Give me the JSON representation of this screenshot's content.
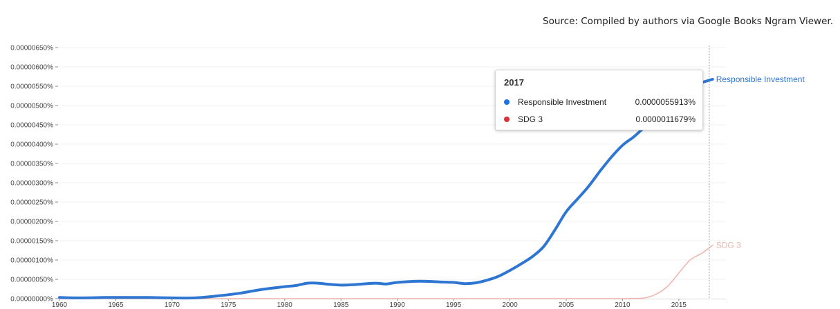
{
  "source_note": "Source: Compiled by authors via Google Books Ngram Viewer.",
  "chart_data": {
    "type": "line",
    "x_ticks": [
      "1960",
      "1965",
      "1970",
      "1975",
      "1980",
      "1985",
      "1990",
      "1995",
      "2000",
      "2005",
      "2010",
      "2015"
    ],
    "y_ticks": [
      "0.00000000%",
      "0.00000050%",
      "0.00000100%",
      "0.00000150%",
      "0.00000200%",
      "0.00000250%",
      "0.00000300%",
      "0.00000350%",
      "0.00000400%",
      "0.00000450%",
      "0.00000500%",
      "0.00000550%",
      "0.00000600%",
      "0.00000650%"
    ],
    "xlim": [
      1960,
      2019
    ],
    "ylim": [
      0,
      6.5e-06
    ],
    "grid": true,
    "series": [
      {
        "name": "Responsible Investment",
        "color": "#2e76d2",
        "x": [
          1960,
          1962,
          1964,
          1966,
          1968,
          1970,
          1972,
          1974,
          1976,
          1978,
          1980,
          1981,
          1982,
          1983,
          1984,
          1985,
          1986,
          1988,
          1989,
          1990,
          1992,
          1994,
          1995,
          1996,
          1997,
          1998,
          1999,
          2000,
          2001,
          2002,
          2003,
          2004,
          2005,
          2006,
          2007,
          2008,
          2009,
          2010,
          2011,
          2012,
          2013,
          2014,
          2015,
          2016,
          2017,
          2018
        ],
        "y": [
          3e-08,
          2e-08,
          3e-08,
          3e-08,
          3e-08,
          2e-08,
          2e-08,
          7e-08,
          1.4e-07,
          2.4e-07,
          3.1e-07,
          3.4e-07,
          4e-07,
          4e-07,
          3.7e-07,
          3.5e-07,
          3.6e-07,
          4e-07,
          3.8e-07,
          4.2e-07,
          4.5e-07,
          4.3e-07,
          4.2e-07,
          3.9e-07,
          4.1e-07,
          4.8e-07,
          5.8e-07,
          7.3e-07,
          9e-07,
          1.09e-06,
          1.35e-06,
          1.78e-06,
          2.25e-06,
          2.58e-06,
          2.91e-06,
          3.3e-06,
          3.66e-06,
          3.97e-06,
          4.19e-06,
          4.45e-06,
          4.68e-06,
          4.94e-06,
          5.22e-06,
          5.48e-06,
          5.5913e-06,
          5.68e-06
        ]
      },
      {
        "name": "SDG 3",
        "color": "#f0b6ad",
        "x": [
          1960,
          1970,
          1980,
          1990,
          2000,
          2008,
          2010,
          2011,
          2012,
          2013,
          2014,
          2015,
          2016,
          2017,
          2018
        ],
        "y": [
          0,
          0,
          0,
          0,
          0,
          0,
          0,
          5e-09,
          2e-08,
          1.2e-07,
          3.2e-07,
          6.6e-07,
          1e-06,
          1.1679e-06,
          1.38e-06
        ]
      }
    ],
    "series_labels": [
      "Responsible Investment",
      "SDG 3"
    ],
    "hover_line_x": 2017.7,
    "tooltip": {
      "year": "2017",
      "rows": [
        {
          "name": "Responsible Investment",
          "value": "0.0000055913%",
          "color": "#1a73e8"
        },
        {
          "name": "SDG 3",
          "value": "0.0000011679%",
          "color": "#db3236"
        }
      ]
    }
  }
}
